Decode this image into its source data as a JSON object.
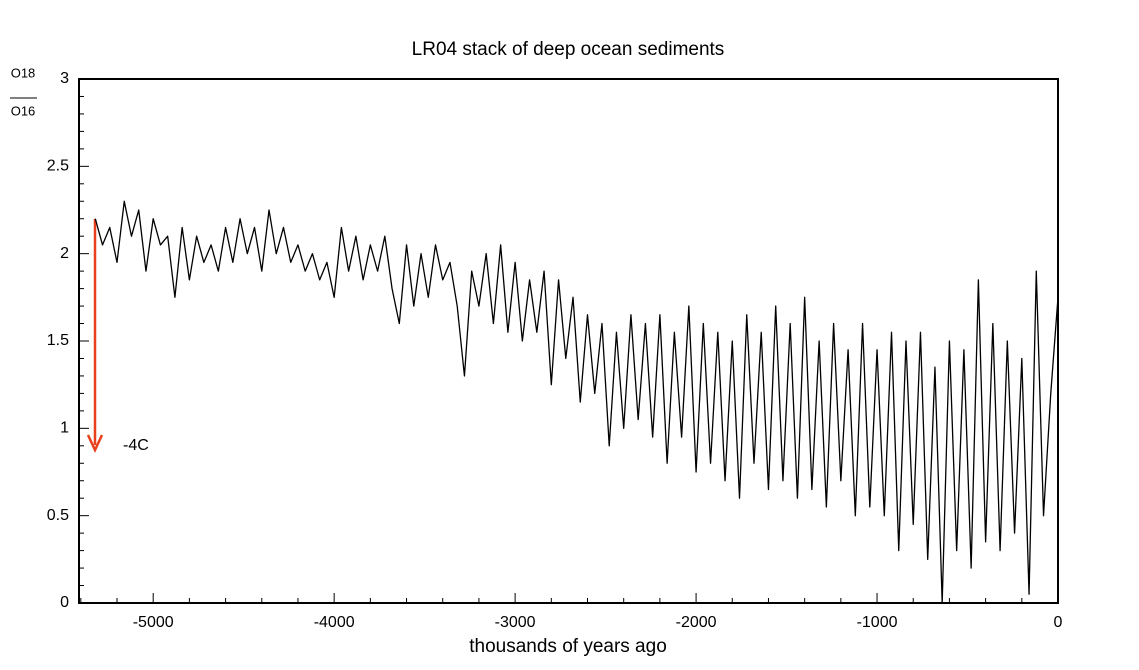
{
  "chart_data": {
    "type": "line",
    "title": "LR04 stack of deep ocean sediments",
    "xlabel": "thousands of years ago",
    "ylabel": {
      "numerator": "O18",
      "denominator": "O16"
    },
    "annotation": "-4C",
    "xlim": [
      -5410,
      0
    ],
    "ylim": [
      0,
      3
    ],
    "xticks": [
      -5000,
      -4000,
      -3000,
      -2000,
      -1000,
      0
    ],
    "yticks": [
      0,
      0.5,
      1,
      1.5,
      2,
      2.5,
      3
    ],
    "xticks_minor": [
      -5400,
      -5200,
      -4800,
      -4600,
      -4400,
      -4200,
      -3800,
      -3600,
      -3400,
      -3200,
      -2800,
      -2600,
      -2400,
      -2200,
      -1800,
      -1600,
      -1400,
      -1200,
      -800,
      -600,
      -400,
      -200
    ],
    "yticks_minor": [
      0.1,
      0.2,
      0.3,
      0.4,
      0.6,
      0.7,
      0.8,
      0.9,
      1.1,
      1.2,
      1.3,
      1.4,
      1.6,
      1.7,
      1.8,
      1.9,
      2.1,
      2.2,
      2.3,
      2.4,
      2.6,
      2.7,
      2.8,
      2.9
    ],
    "series": [
      {
        "color": "#000000",
        "x": [
          -5320,
          -5280,
          -5240,
          -5200,
          -5160,
          -5120,
          -5080,
          -5040,
          -5000,
          -4960,
          -4920,
          -4880,
          -4840,
          -4800,
          -4760,
          -4720,
          -4680,
          -4640,
          -4600,
          -4560,
          -4520,
          -4480,
          -4440,
          -4400,
          -4360,
          -4320,
          -4280,
          -4240,
          -4200,
          -4160,
          -4120,
          -4080,
          -4040,
          -4000,
          -3960,
          -3920,
          -3880,
          -3840,
          -3800,
          -3760,
          -3720,
          -3680,
          -3640,
          -3600,
          -3560,
          -3520,
          -3480,
          -3440,
          -3400,
          -3360,
          -3320,
          -3280,
          -3240,
          -3200,
          -3160,
          -3120,
          -3080,
          -3040,
          -3000,
          -2960,
          -2920,
          -2880,
          -2840,
          -2800,
          -2760,
          -2720,
          -2680,
          -2640,
          -2600,
          -2560,
          -2520,
          -2480,
          -2440,
          -2400,
          -2360,
          -2320,
          -2280,
          -2240,
          -2200,
          -2160,
          -2120,
          -2080,
          -2040,
          -2000,
          -1960,
          -1920,
          -1880,
          -1840,
          -1800,
          -1760,
          -1720,
          -1680,
          -1640,
          -1600,
          -1560,
          -1520,
          -1480,
          -1440,
          -1400,
          -1360,
          -1320,
          -1280,
          -1240,
          -1200,
          -1160,
          -1120,
          -1080,
          -1040,
          -1000,
          -960,
          -920,
          -880,
          -840,
          -800,
          -760,
          -720,
          -680,
          -640,
          -600,
          -560,
          -520,
          -480,
          -440,
          -400,
          -360,
          -320,
          -280,
          -240,
          -200,
          -160,
          -120,
          -80,
          -40,
          0
        ],
        "values": [
          2.2,
          2.05,
          2.15,
          1.95,
          2.3,
          2.1,
          2.25,
          1.9,
          2.2,
          2.05,
          2.1,
          1.75,
          2.15,
          1.85,
          2.1,
          1.95,
          2.05,
          1.9,
          2.15,
          1.95,
          2.2,
          2.0,
          2.15,
          1.9,
          2.25,
          2.0,
          2.15,
          1.95,
          2.05,
          1.9,
          2.0,
          1.85,
          1.95,
          1.75,
          2.15,
          1.9,
          2.1,
          1.85,
          2.05,
          1.9,
          2.1,
          1.8,
          1.6,
          2.05,
          1.7,
          2.0,
          1.75,
          2.05,
          1.85,
          1.95,
          1.7,
          1.3,
          1.9,
          1.7,
          2.0,
          1.6,
          2.05,
          1.55,
          1.95,
          1.5,
          1.85,
          1.55,
          1.9,
          1.25,
          1.85,
          1.4,
          1.75,
          1.15,
          1.65,
          1.2,
          1.6,
          0.9,
          1.55,
          1.0,
          1.65,
          1.05,
          1.6,
          0.95,
          1.65,
          0.8,
          1.55,
          0.95,
          1.7,
          0.75,
          1.6,
          0.8,
          1.55,
          0.7,
          1.5,
          0.6,
          1.65,
          0.8,
          1.55,
          0.65,
          1.7,
          0.7,
          1.6,
          0.6,
          1.75,
          0.65,
          1.5,
          0.55,
          1.6,
          0.7,
          1.45,
          0.5,
          1.6,
          0.55,
          1.45,
          0.5,
          1.55,
          0.3,
          1.5,
          0.45,
          1.55,
          0.25,
          1.35,
          0.0,
          1.5,
          0.3,
          1.45,
          0.2,
          1.85,
          0.35,
          1.6,
          0.3,
          1.5,
          0.4,
          1.4,
          0.05,
          1.9,
          0.5,
          1.2,
          1.75
        ]
      }
    ]
  }
}
